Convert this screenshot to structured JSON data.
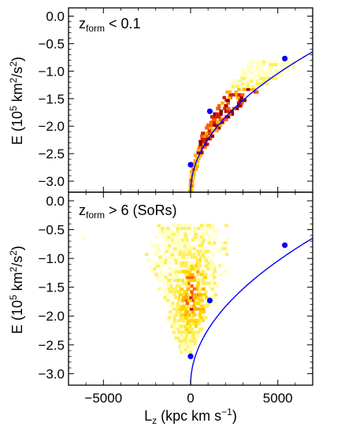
{
  "chart_data": [
    {
      "type": "heatmap",
      "panel_label": {
        "main": "z",
        "sub": "form",
        "rest": " < 0.1"
      },
      "xlim": [
        -7000,
        7000
      ],
      "ylim": [
        -3.2,
        0.15
      ],
      "yticks": [
        -3.0,
        -2.5,
        -2.0,
        -1.5,
        -1.0,
        -0.5,
        0.0
      ],
      "ytick_labels": [
        "−3.0",
        "−2.5",
        "−2.0",
        "−1.5",
        "−1.0",
        "−0.5",
        "0.0"
      ],
      "ylabel": "E (10⁵ km²/s²)",
      "circular_orbit_curve": {
        "color": "#0000ff"
      },
      "markers": [
        {
          "x": 0,
          "y": -2.7
        },
        {
          "x": 1100,
          "y": -1.73
        },
        {
          "x": 5400,
          "y": -0.77
        }
      ],
      "density": "narrow high-density sequence hugging the circular-orbit curve between Lz≈0–2000, faint yellow spread up to E≈-0.8"
    },
    {
      "type": "heatmap",
      "panel_label": {
        "main": "z",
        "sub": "form",
        "rest": " > 6 (SoRs)"
      },
      "xlim": [
        -7000,
        7000
      ],
      "ylim": [
        -3.2,
        0.15
      ],
      "xticks": [
        -5000,
        0,
        5000
      ],
      "xtick_labels": [
        "−5000",
        "0",
        "5000"
      ],
      "yticks": [
        -3.0,
        -2.5,
        -2.0,
        -1.5,
        -1.0,
        -0.5,
        0.0
      ],
      "ytick_labels": [
        "−3.0",
        "−2.5",
        "−2.0",
        "−1.5",
        "−1.0",
        "−0.5",
        "0.0"
      ],
      "xlabel": "Lz (kpc km s⁻¹)",
      "ylabel": "E (10⁵ km²/s²)",
      "circular_orbit_curve": {
        "color": "#0000ff"
      },
      "markers": [
        {
          "x": 0,
          "y": -2.7
        },
        {
          "x": 1100,
          "y": -1.73
        },
        {
          "x": 5400,
          "y": -0.77
        }
      ],
      "density": "broad distribution centred near Lz≈0, E from -2.5 to -0.4, densest around E≈-1.5 to -2.0"
    }
  ],
  "labels": {
    "ylabel_top": "E (10",
    "ylabel_top_sup": "5",
    "ylabel_top_mid": " km",
    "ylabel_top_sup2": "2",
    "ylabel_top_end": "/s",
    "ylabel_top_sup3": "2",
    "ylabel_top_close": ")",
    "xlabel_main": "L",
    "xlabel_sub": "z",
    "xlabel_rest": " (kpc km s",
    "xlabel_sup": "−1",
    "xlabel_close": ")"
  },
  "colors": {
    "curve": "#0000ff",
    "marker": "#0000ff",
    "low": "#ffffc0",
    "mid": "#ffd700",
    "high": "#ff6000",
    "peak": "#8b0000"
  }
}
